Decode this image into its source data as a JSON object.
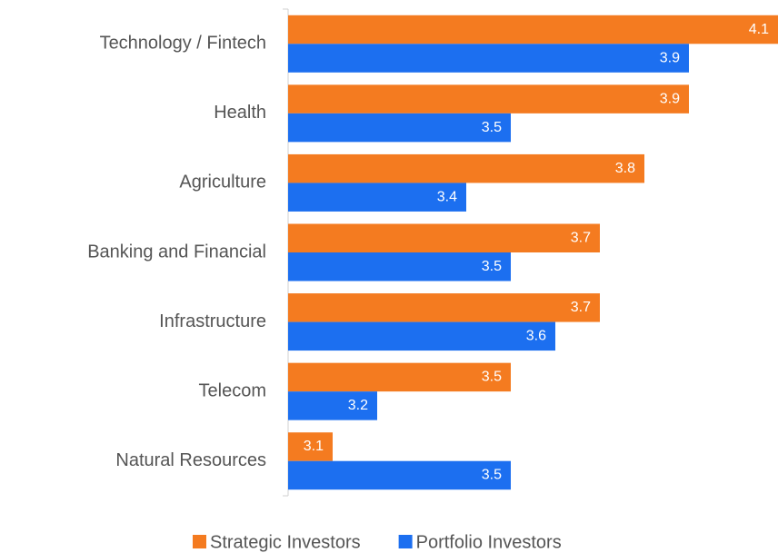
{
  "chart_data": {
    "type": "barh",
    "categories": [
      "Technology / Fintech",
      "Health",
      "Agriculture",
      "Banking and Financial",
      "Infrastructure",
      "Telecom",
      "Natural Resources"
    ],
    "series": [
      {
        "name": "Strategic Investors",
        "color": "#f47b20",
        "values": [
          4.1,
          3.9,
          3.8,
          3.7,
          3.7,
          3.5,
          3.1
        ]
      },
      {
        "name": "Portfolio Investors",
        "color": "#1c6ff0",
        "values": [
          3.9,
          3.5,
          3.4,
          3.5,
          3.6,
          3.2,
          3.5
        ]
      }
    ],
    "xlim": [
      3.0,
      4.1
    ],
    "legend": "bottom"
  }
}
